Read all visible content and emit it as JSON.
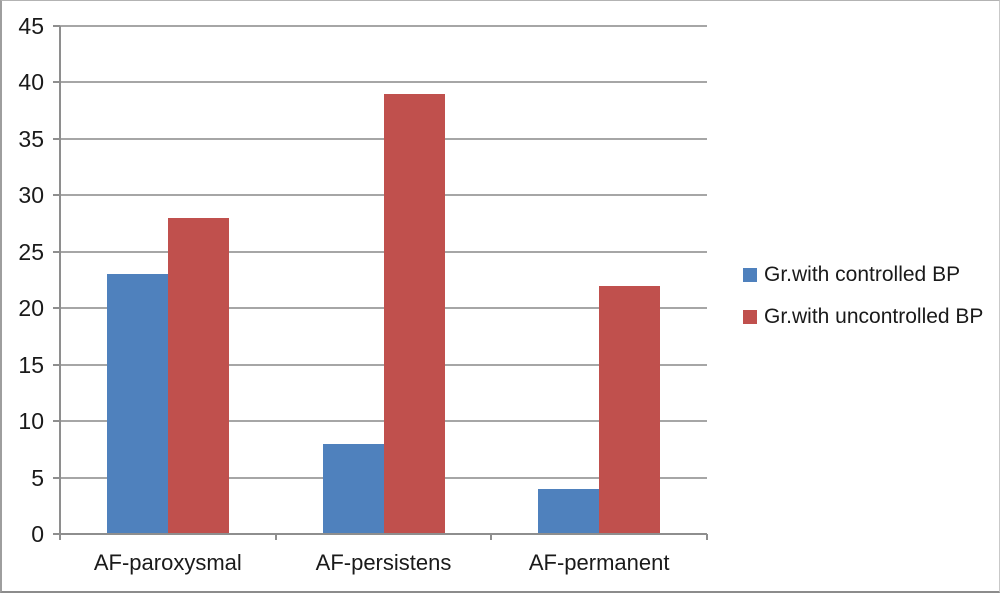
{
  "chart_data": {
    "type": "bar",
    "title": "",
    "xlabel": "",
    "ylabel": "",
    "categories": [
      "AF-paroxysmal",
      "AF-persistens",
      "AF-permanent"
    ],
    "series": [
      {
        "name": "Gr.with controlled BP",
        "color": "#4F81BD",
        "values": [
          23,
          8,
          4
        ]
      },
      {
        "name": "Gr.with uncontrolled BP",
        "color": "#C0504D",
        "values": [
          28,
          39,
          22
        ]
      }
    ],
    "ylim": [
      0,
      45
    ],
    "y_ticks": [
      0,
      5,
      10,
      15,
      20,
      25,
      30,
      35,
      40,
      45
    ],
    "grid": true,
    "legend_position": "right",
    "colors": {
      "background": "#ffffff",
      "gridline": "#a6a6a6",
      "axis": "#8e8e8e",
      "text": "#1a1a1a"
    }
  }
}
